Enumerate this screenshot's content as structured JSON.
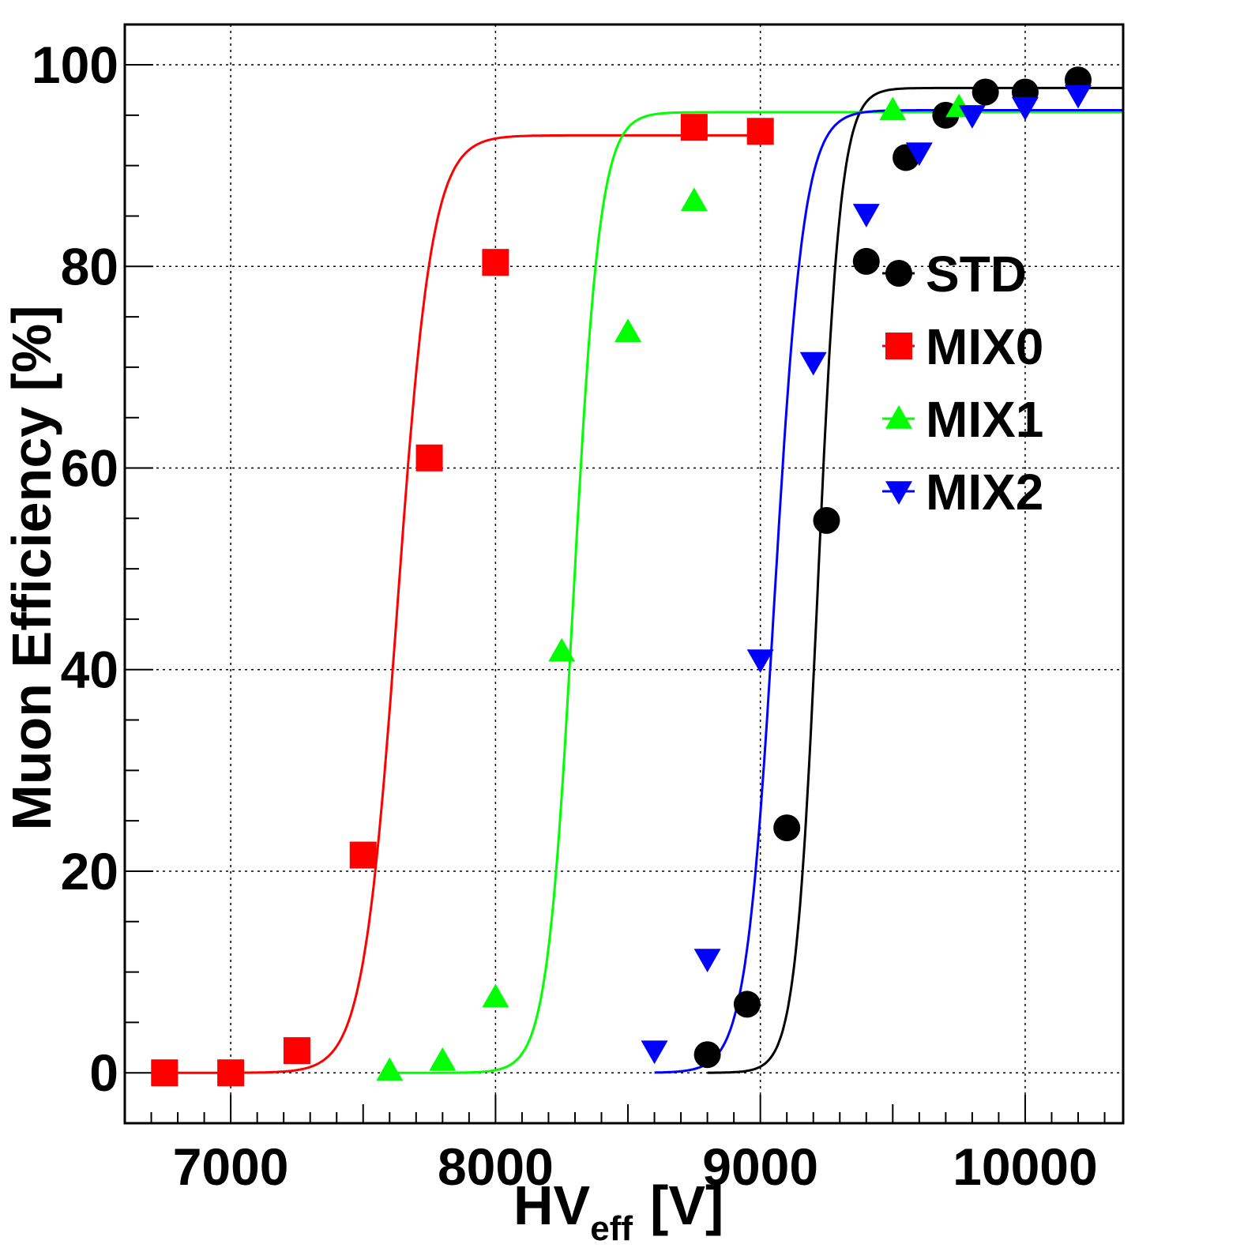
{
  "chart_data": {
    "type": "scatter",
    "title": "",
    "xlabel": "HV",
    "xlabel_sub": "eff",
    "xlabel_unit": "[V]",
    "ylabel": "Muon Efficiency [%]",
    "xlim": [
      6600,
      10370
    ],
    "ylim": [
      -5,
      104
    ],
    "grid": true,
    "legend_position": "right-center",
    "x_ticks": [
      7000,
      8000,
      9000,
      10000
    ],
    "y_ticks": [
      0,
      20,
      40,
      60,
      80,
      100
    ],
    "x_tick_labels": [
      "7000",
      "8000",
      "9000",
      "10000"
    ],
    "y_tick_labels": [
      "0",
      "20",
      "40",
      "60",
      "80",
      "100"
    ],
    "series": [
      {
        "name": "STD",
        "color": "#000000",
        "marker": "circle",
        "x": [
          8800,
          8950,
          9100,
          9250,
          9400,
          9550,
          9700,
          9850,
          10000,
          10200
        ],
        "y": [
          1.8,
          6.8,
          24.3,
          54.8,
          80.5,
          90.8,
          95.0,
          97.3,
          97.3,
          98.5
        ],
        "fit": {
          "plateau": 97.7,
          "midpoint": 9218,
          "width": 43
        }
      },
      {
        "name": "MIX0",
        "color": "#ff0000",
        "marker": "square",
        "x": [
          6750,
          7000,
          7250,
          7500,
          7750,
          8000,
          8750,
          9000
        ],
        "y": [
          0,
          0,
          2.2,
          21.6,
          61.0,
          80.4,
          93.8,
          93.4
        ],
        "fit": {
          "plateau": 93.0,
          "midpoint": 7630,
          "width": 65
        }
      },
      {
        "name": "MIX1",
        "color": "#00ff00",
        "marker": "triangle-up",
        "x": [
          7600,
          7800,
          8000,
          8250,
          8500,
          8750,
          9500,
          9750
        ],
        "y": [
          0.2,
          1.2,
          7.5,
          41.8,
          73.5,
          86.5,
          95.5,
          95.8
        ],
        "fit": {
          "plateau": 95.3,
          "midpoint": 8295,
          "width": 50
        }
      },
      {
        "name": "MIX2",
        "color": "#0000ff",
        "marker": "triangle-down",
        "x": [
          8600,
          8800,
          9000,
          9200,
          9400,
          9600,
          9800,
          10000,
          10200
        ],
        "y": [
          2.2,
          11.3,
          41.0,
          70.5,
          85.2,
          91.3,
          95.0,
          95.8,
          97.0
        ],
        "fit": {
          "plateau": 95.5,
          "midpoint": 9055,
          "width": 55
        }
      }
    ]
  }
}
